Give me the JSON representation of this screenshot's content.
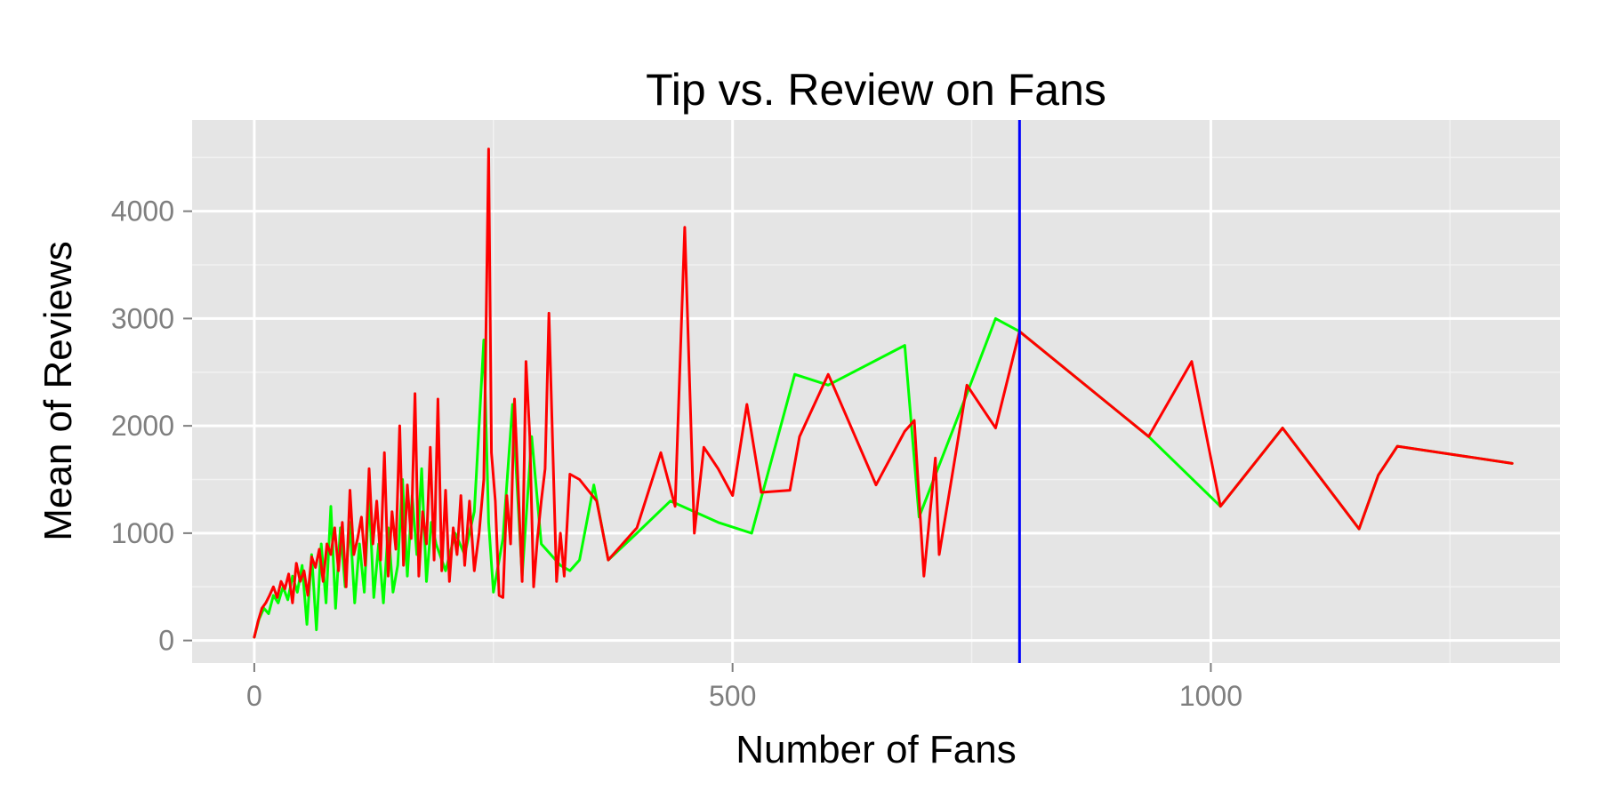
{
  "chart_data": {
    "type": "line",
    "title": "Tip vs. Review on Fans",
    "xlabel": "Number of Fans",
    "ylabel": "Mean of Reviews",
    "xlim": [
      -65,
      1365
    ],
    "ylim": [
      -210,
      4850
    ],
    "x_ticks": [
      0,
      500,
      1000
    ],
    "x_tick_labels": [
      "0",
      "500",
      "1000"
    ],
    "y_ticks": [
      0,
      1000,
      2000,
      3000,
      4000
    ],
    "y_tick_labels": [
      "0",
      "1000",
      "2000",
      "3000",
      "4000"
    ],
    "grid": true,
    "background": "#E5E5E5",
    "vline": {
      "x": 800,
      "color": "#0000FF"
    },
    "series": [
      {
        "color": "#00FF00",
        "x": [
          0,
          5,
          10,
          15,
          20,
          25,
          30,
          35,
          40,
          45,
          50,
          55,
          60,
          65,
          70,
          75,
          80,
          85,
          90,
          95,
          100,
          105,
          110,
          115,
          120,
          125,
          130,
          135,
          140,
          145,
          150,
          155,
          160,
          165,
          170,
          175,
          180,
          185,
          190,
          200,
          210,
          220,
          230,
          240,
          245,
          250,
          260,
          270,
          280,
          290,
          300,
          310,
          320,
          330,
          340,
          355,
          370,
          400,
          435,
          485,
          520,
          565,
          600,
          680,
          695,
          745,
          775,
          800,
          935,
          1010,
          1075,
          1155,
          1175,
          1195,
          1315
        ],
        "y": [
          30,
          200,
          300,
          250,
          420,
          350,
          500,
          380,
          600,
          450,
          700,
          150,
          800,
          100,
          900,
          350,
          1250,
          300,
          1050,
          500,
          1100,
          350,
          900,
          450,
          1350,
          400,
          900,
          350,
          1050,
          450,
          700,
          1500,
          600,
          1350,
          800,
          1600,
          550,
          1100,
          900,
          650,
          1000,
          800,
          1200,
          2800,
          1100,
          450,
          950,
          2200,
          600,
          1900,
          900,
          800,
          700,
          650,
          750,
          1450,
          750,
          1000,
          1300,
          1100,
          1000,
          2480,
          2380,
          2750,
          1150,
          2300,
          3000,
          2880,
          1900,
          1250,
          1980,
          1040,
          1540,
          1810,
          1650
        ]
      },
      {
        "color": "#FF0000",
        "x": [
          0,
          4,
          8,
          12,
          16,
          20,
          24,
          28,
          32,
          36,
          40,
          44,
          48,
          52,
          56,
          60,
          64,
          68,
          72,
          76,
          80,
          84,
          88,
          92,
          96,
          100,
          104,
          108,
          112,
          116,
          120,
          124,
          128,
          132,
          136,
          140,
          144,
          148,
          152,
          156,
          160,
          164,
          168,
          172,
          176,
          180,
          184,
          188,
          192,
          196,
          200,
          204,
          208,
          212,
          216,
          220,
          225,
          230,
          235,
          240,
          245,
          248,
          252,
          256,
          260,
          264,
          268,
          272,
          276,
          280,
          284,
          288,
          292,
          296,
          300,
          304,
          308,
          312,
          316,
          320,
          324,
          330,
          340,
          358,
          370,
          400,
          425,
          440,
          450,
          460,
          470,
          485,
          500,
          515,
          530,
          560,
          570,
          600,
          605,
          650,
          680,
          690,
          700,
          712,
          716,
          745,
          775,
          800,
          935,
          980,
          1010,
          1075,
          1155,
          1175,
          1195,
          1315
        ],
        "y": [
          30,
          180,
          300,
          350,
          420,
          500,
          400,
          550,
          480,
          620,
          350,
          720,
          550,
          650,
          420,
          780,
          680,
          850,
          550,
          900,
          800,
          1050,
          650,
          1100,
          500,
          1400,
          800,
          950,
          1150,
          700,
          1600,
          900,
          1300,
          750,
          1750,
          600,
          1200,
          850,
          2000,
          700,
          1450,
          950,
          2300,
          600,
          1200,
          900,
          1800,
          750,
          2250,
          650,
          1400,
          550,
          1050,
          800,
          1350,
          700,
          1300,
          650,
          1000,
          1500,
          4580,
          1750,
          1300,
          420,
          400,
          1350,
          900,
          2250,
          1400,
          550,
          2600,
          1900,
          500,
          950,
          1300,
          1600,
          3050,
          1800,
          550,
          1000,
          600,
          1550,
          1500,
          1300,
          750,
          1050,
          1750,
          1250,
          3850,
          1000,
          1800,
          1600,
          1350,
          2200,
          1380,
          1400,
          1900,
          2480,
          2380,
          1450,
          1950,
          2050,
          600,
          1700,
          800,
          2380,
          1980,
          2880,
          1900,
          2600,
          1250,
          1980,
          1040,
          1540,
          1810,
          1650
        ]
      }
    ]
  }
}
